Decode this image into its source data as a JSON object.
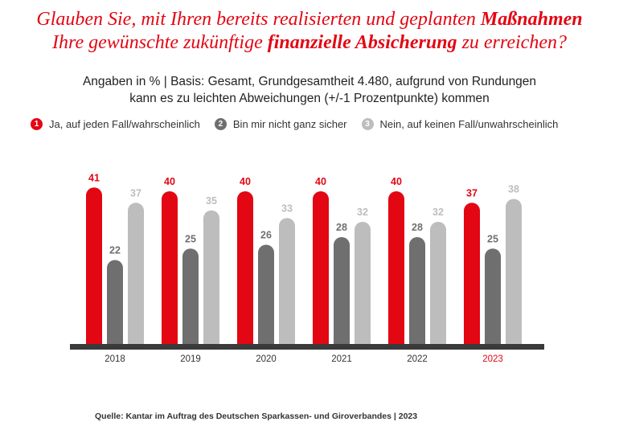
{
  "title": {
    "line1_pre": "Glauben Sie, mit Ihren bereits realisierten und geplanten ",
    "line1_bold": "Maßnahmen",
    "line2_pre": "Ihre gewünschte zukünftige ",
    "line2_bold": "finanzielle Absicherung",
    "line2_post": " zu erreichen?"
  },
  "basis": {
    "line1": "Angaben in % | Basis: Gesamt, Grundgesamtheit 4.480, aufgrund von Rundungen",
    "line2": "kann es zu leichten Abweichungen (+/-1 Prozentpunkte) kommen"
  },
  "colors": {
    "red": "#e30613",
    "dark": "#6f6f6f",
    "light": "#bdbdbd",
    "baseline": "#3a3a3a"
  },
  "chart_data": {
    "type": "bar",
    "categories": [
      "2018",
      "2019",
      "2020",
      "2021",
      "2022",
      "2023"
    ],
    "highlight_category": "2023",
    "series": [
      {
        "number": "1",
        "name": "Ja, auf jeden Fall/wahrscheinlich",
        "values": [
          41,
          40,
          40,
          40,
          40,
          37
        ]
      },
      {
        "number": "2",
        "name": "Bin mir nicht ganz sicher",
        "values": [
          22,
          25,
          26,
          28,
          28,
          25
        ]
      },
      {
        "number": "3",
        "name": "Nein, auf keinen Fall/unwahrscheinlich",
        "values": [
          37,
          35,
          33,
          32,
          32,
          38
        ]
      }
    ],
    "ylim": [
      0,
      45
    ],
    "grid": false,
    "legend_position": "top-left"
  },
  "source": "Quelle: Kantar im Auftrag des Deutschen Sparkassen- und Giroverbandes | 2023"
}
